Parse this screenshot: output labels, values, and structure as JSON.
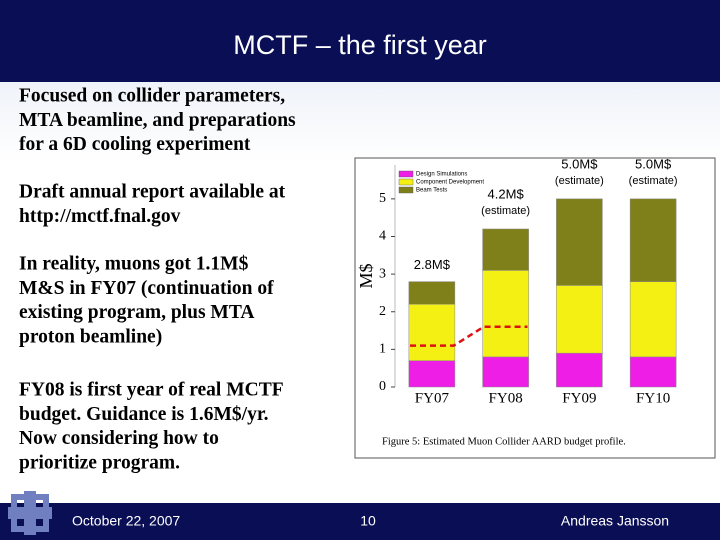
{
  "header": {
    "title": "MCTF – the first year"
  },
  "bullets": [
    [
      "Focused on collider parameters,",
      "MTA beamline, and preparations",
      "for a 6D cooling experiment"
    ],
    [
      "Draft annual report available at",
      "http://mctf.fnal.gov"
    ],
    [
      "In reality, muons got 1.1M$",
      "M&S in FY07 (continuation of",
      "existing program, plus MTA",
      "proton beamline)"
    ],
    [
      "FY08 is first year of real MCTF",
      "budget. Guidance is 1.6M$/yr.",
      "Now considering how to",
      "prioritize program."
    ]
  ],
  "footer": {
    "date": "October 22, 2007",
    "page": "10",
    "author": "Andreas Jansson"
  },
  "chart_data": {
    "type": "stacked-bar",
    "ylabel": "M$",
    "caption": "Figure 5:  Estimated Muon Collider AARD budget profile.",
    "categories": [
      "FY07",
      "FY08",
      "FY09",
      "FY10"
    ],
    "series": [
      {
        "name": "Design Simulations",
        "color": "#ee1ee6",
        "values": [
          0.7,
          0.8,
          0.9,
          0.8
        ]
      },
      {
        "name": "Component Development",
        "color": "#f5f014",
        "values": [
          1.5,
          2.3,
          1.8,
          2.0
        ]
      },
      {
        "name": "Beam Tests",
        "color": "#80801a",
        "values": [
          0.6,
          1.1,
          2.3,
          2.2
        ]
      }
    ],
    "line_values": [
      1.1,
      1.6,
      null,
      null
    ],
    "line_color": "#dd1111",
    "total_labels": [
      {
        "text": "2.8M$"
      },
      {
        "text": "4.2M$",
        "note": "(estimate)"
      },
      {
        "text": "5.0M$",
        "note": "(estimate)"
      },
      {
        "text": "5.0M$",
        "note": "(estimate)"
      }
    ],
    "ylim": [
      0,
      5.9
    ],
    "yticks": [
      0,
      1,
      2,
      3,
      4,
      5
    ]
  }
}
